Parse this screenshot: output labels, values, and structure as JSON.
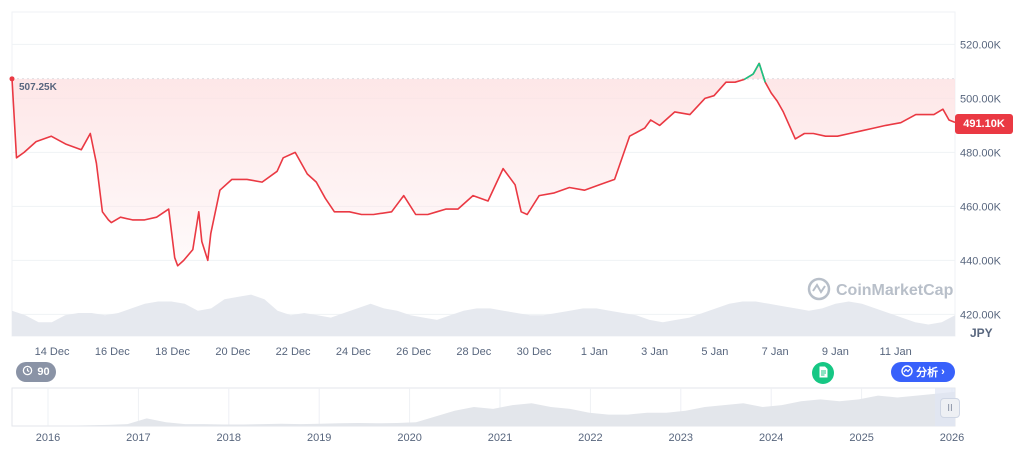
{
  "chart_data": {
    "type": "area",
    "currency": "JPY",
    "start_price_label": "507.25K",
    "current_price_label": "491.10K",
    "y_ticks": [
      "520.00K",
      "500.00K",
      "480.00K",
      "460.00K",
      "440.00K",
      "420.00K"
    ],
    "y_tick_values": [
      520000,
      500000,
      480000,
      460000,
      440000,
      420000
    ],
    "ylim": [
      412000,
      532000
    ],
    "x_ticks": [
      "14 Dec",
      "16 Dec",
      "18 Dec",
      "20 Dec",
      "22 Dec",
      "24 Dec",
      "26 Dec",
      "28 Dec",
      "30 Dec",
      "1 Jan",
      "3 Jan",
      "5 Jan",
      "7 Jan",
      "9 Jan",
      "11 Jan"
    ],
    "x_range_days": [
      0,
      31.3
    ],
    "x_tick_day_values": [
      1.33,
      3.33,
      5.33,
      7.33,
      9.33,
      11.33,
      13.33,
      15.33,
      17.33,
      19.33,
      21.33,
      23.33,
      25.33,
      27.33,
      29.33
    ],
    "series": [
      {
        "x_days": [
          0,
          0.15,
          0.4,
          0.8,
          1.3,
          1.8,
          2.3,
          2.6,
          2.8,
          3.0,
          3.2,
          3.3,
          3.6,
          4.0,
          4.4,
          4.8,
          5.2,
          5.4,
          5.5,
          5.7,
          6.0,
          6.2,
          6.3,
          6.5,
          6.6,
          6.9,
          7.3,
          7.8,
          8.3,
          8.8,
          9.0,
          9.4,
          9.8,
          10.1,
          10.4,
          10.7,
          11.2,
          11.6,
          12.0,
          12.6,
          13.0,
          13.4,
          13.8,
          14.1,
          14.4,
          14.8,
          15.3,
          15.8,
          16.3,
          16.7,
          16.9,
          17.1,
          17.5,
          18.0,
          18.5,
          19.0,
          19.5,
          20.0,
          20.5,
          21.0,
          21.2,
          21.5,
          22.0,
          22.5,
          23.0,
          23.3,
          23.7,
          24.0,
          24.3,
          24.6,
          24.8,
          25.0,
          25.2,
          25.4,
          25.6,
          25.8,
          26.0,
          26.3,
          26.6,
          27.0,
          27.4,
          27.8,
          28.2,
          28.6,
          29.0,
          29.5,
          30.0,
          30.3,
          30.6,
          30.9,
          31.1,
          31.3
        ],
        "values": [
          507250,
          478000,
          480000,
          484000,
          486000,
          483000,
          481000,
          487000,
          476000,
          458000,
          455000,
          454000,
          456000,
          455000,
          455000,
          456000,
          459000,
          441000,
          438000,
          440000,
          444000,
          458000,
          447000,
          440000,
          450000,
          466000,
          470000,
          470000,
          469000,
          473000,
          478000,
          480000,
          472000,
          469000,
          463000,
          458000,
          458000,
          457000,
          457000,
          458000,
          464000,
          457000,
          457000,
          458000,
          459000,
          459000,
          464000,
          462000,
          474000,
          468000,
          458000,
          457000,
          464000,
          465000,
          467000,
          466000,
          468000,
          470000,
          486000,
          489000,
          492000,
          490000,
          495000,
          494000,
          500000,
          501000,
          506000,
          506000,
          507000,
          509000,
          513000,
          506000,
          502000,
          499000,
          495000,
          490000,
          485000,
          487000,
          487000,
          486000,
          486000,
          487000,
          488000,
          489000,
          490000,
          491000,
          494000,
          494000,
          494000,
          496000,
          492000,
          491100
        ]
      }
    ],
    "volume_profile": [
      0.55,
      0.45,
      0.3,
      0.3,
      0.45,
      0.5,
      0.5,
      0.45,
      0.5,
      0.6,
      0.7,
      0.75,
      0.75,
      0.7,
      0.55,
      0.6,
      0.8,
      0.85,
      0.9,
      0.8,
      0.55,
      0.45,
      0.5,
      0.45,
      0.4,
      0.5,
      0.6,
      0.7,
      0.6,
      0.55,
      0.45,
      0.4,
      0.35,
      0.45,
      0.55,
      0.6,
      0.6,
      0.55,
      0.5,
      0.45,
      0.45,
      0.5,
      0.55,
      0.6,
      0.6,
      0.55,
      0.5,
      0.45,
      0.35,
      0.3,
      0.35,
      0.4,
      0.5,
      0.6,
      0.7,
      0.75,
      0.75,
      0.7,
      0.65,
      0.6,
      0.55,
      0.6,
      0.7,
      0.75,
      0.7,
      0.6,
      0.5,
      0.4,
      0.3,
      0.25,
      0.3,
      0.45
    ],
    "overview": {
      "x_ticks": [
        "2016",
        "2017",
        "2018",
        "2019",
        "2020",
        "2021",
        "2022",
        "2023",
        "2024",
        "2025",
        "2026"
      ],
      "profile": [
        0.01,
        0.01,
        0.01,
        0.01,
        0.02,
        0.03,
        0.05,
        0.2,
        0.1,
        0.05,
        0.05,
        0.04,
        0.04,
        0.05,
        0.06,
        0.05,
        0.06,
        0.07,
        0.08,
        0.07,
        0.08,
        0.1,
        0.25,
        0.4,
        0.5,
        0.45,
        0.55,
        0.6,
        0.5,
        0.45,
        0.35,
        0.3,
        0.3,
        0.35,
        0.35,
        0.4,
        0.5,
        0.55,
        0.6,
        0.5,
        0.55,
        0.65,
        0.7,
        0.65,
        0.7,
        0.8,
        0.75,
        0.8,
        0.85,
        0.9
      ]
    },
    "watermark": "CoinMarketCap",
    "grid": true
  },
  "controls": {
    "range_label": "90",
    "analysis_label": "分析",
    "handle_label": "II"
  },
  "colors": {
    "line_down": "#ea3943",
    "line_up": "#16c784",
    "area_fill": "#fde2e3",
    "volume_fill": "#e6e9ef",
    "grid": "#eff2f5"
  }
}
